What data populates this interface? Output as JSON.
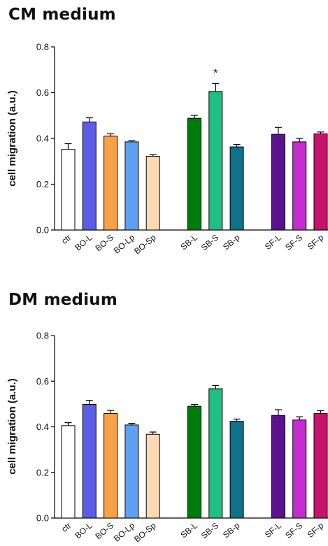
{
  "chart_data": [
    {
      "type": "bar",
      "title": "CM medium",
      "ylabel": "cell migration (a.u.)",
      "xlabel": "",
      "ylim": [
        0,
        0.8
      ],
      "yticks": [
        "0.0",
        "0.2",
        "0.4",
        "0.6",
        "0.8"
      ],
      "groups": [
        {
          "categories": [
            "ctr",
            "BO-L",
            "BO-S",
            "BO-Lp",
            "BO-Sp"
          ]
        },
        {
          "categories": [
            "SB-L",
            "SB-S",
            "SB-p"
          ]
        },
        {
          "categories": [
            "SF-L",
            "SF-S",
            "SF-p"
          ]
        }
      ],
      "categories": [
        "ctr",
        "BO-L",
        "BO-S",
        "BO-Lp",
        "BO-Sp",
        "SB-L",
        "SB-S",
        "SB-p",
        "SF-L",
        "SF-S",
        "SF-p"
      ],
      "values": [
        0.352,
        0.472,
        0.41,
        0.385,
        0.322,
        0.488,
        0.605,
        0.363,
        0.418,
        0.385,
        0.42
      ],
      "errors": [
        0.025,
        0.018,
        0.01,
        0.005,
        0.007,
        0.013,
        0.035,
        0.011,
        0.03,
        0.015,
        0.008
      ],
      "colors": [
        "#ffffff",
        "#5b5ce8",
        "#f8a04a",
        "#5f9ff2",
        "#fbd9b4",
        "#007a0c",
        "#1fbf82",
        "#10718c",
        "#5c128c",
        "#c42cd0",
        "#c7136b"
      ],
      "annotations": [
        {
          "category": "SB-S",
          "text": "*"
        }
      ],
      "grid": false,
      "legend": "none"
    },
    {
      "type": "bar",
      "title": "DM medium",
      "ylabel": "cell migration (a.u.)",
      "xlabel": "",
      "ylim": [
        0,
        0.8
      ],
      "yticks": [
        "0.0",
        "0.2",
        "0.4",
        "0.6",
        "0.8"
      ],
      "groups": [
        {
          "categories": [
            "ctr",
            "BO-L",
            "BO-S",
            "BO-Lp",
            "BO-Sp"
          ]
        },
        {
          "categories": [
            "SB-L",
            "SB-S",
            "SB-p"
          ]
        },
        {
          "categories": [
            "SF-L",
            "SF-S",
            "SF-p"
          ]
        }
      ],
      "categories": [
        "ctr",
        "BO-L",
        "BO-S",
        "BO-Lp",
        "BO-Sp",
        "SB-L",
        "SB-S",
        "SB-p",
        "SF-L",
        "SF-S",
        "SF-p"
      ],
      "values": [
        0.405,
        0.498,
        0.458,
        0.408,
        0.367,
        0.49,
        0.567,
        0.424,
        0.45,
        0.43,
        0.458
      ],
      "errors": [
        0.013,
        0.018,
        0.014,
        0.007,
        0.01,
        0.008,
        0.014,
        0.01,
        0.025,
        0.014,
        0.013
      ],
      "colors": [
        "#ffffff",
        "#5b5ce8",
        "#f8a04a",
        "#5f9ff2",
        "#fbd9b4",
        "#007a0c",
        "#1fbf82",
        "#10718c",
        "#5c128c",
        "#c42cd0",
        "#c7136b"
      ],
      "annotations": [],
      "grid": false,
      "legend": "none"
    }
  ]
}
